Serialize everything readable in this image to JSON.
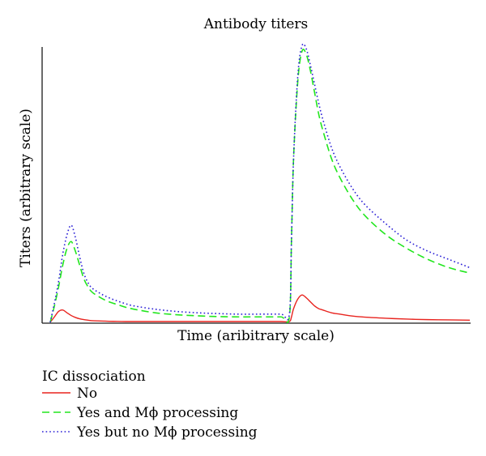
{
  "chart_data": {
    "type": "line",
    "title": "Antibody titers",
    "xlabel": "Time (aribitrary scale)",
    "ylabel": "Titers (arbitrary scale)",
    "xlim": [
      0,
      100
    ],
    "ylim": [
      0,
      100
    ],
    "grid": false,
    "legend_position": "bottom-left",
    "legend_title": "IC dissociation",
    "x": [
      0,
      1,
      2,
      3,
      4,
      5,
      6,
      7,
      8,
      9,
      10,
      12,
      14,
      16,
      18,
      20,
      25,
      30,
      35,
      40,
      45,
      50,
      55,
      57,
      57.5,
      58,
      59,
      60,
      61,
      62,
      63,
      64,
      65,
      67,
      69,
      72,
      75,
      80,
      85,
      90,
      95,
      100
    ],
    "series": [
      {
        "name": "No",
        "color": "#e8241f",
        "dash": "solid",
        "values": [
          0,
          2,
          4,
          4.5,
          3.5,
          2.5,
          1.8,
          1.3,
          1,
          0.8,
          0.6,
          0.5,
          0.4,
          0.35,
          0.3,
          0.3,
          0.3,
          0.3,
          0.3,
          0.3,
          0.3,
          0.3,
          0.3,
          0.3,
          2,
          5,
          8.5,
          10,
          9,
          7.5,
          6,
          5,
          4.5,
          3.5,
          3,
          2.3,
          1.9,
          1.5,
          1.2,
          1,
          0.9,
          0.8
        ]
      },
      {
        "name": "Yes and Mϕ processing",
        "color": "#22e61e",
        "dash": "dashed",
        "values": [
          0,
          6,
          13,
          21,
          27,
          29.5,
          26,
          21,
          16,
          13,
          11,
          9,
          7.5,
          6.5,
          5.5,
          4.8,
          3.5,
          2.8,
          2.4,
          2.1,
          2,
          2,
          2,
          2,
          30,
          60,
          88,
          99,
          98,
          92,
          84,
          76,
          70,
          60,
          53,
          45,
          39,
          32,
          27,
          23,
          20,
          18
        ]
      },
      {
        "name": "Yes but no Mϕ processing",
        "color": "#2a1fd6",
        "dash": "dotted",
        "values": [
          0,
          7,
          15,
          25,
          32,
          35.5,
          31,
          24,
          18,
          14.5,
          12.5,
          10.5,
          9,
          7.8,
          6.8,
          6,
          4.8,
          4,
          3.5,
          3.2,
          3,
          3,
          3,
          3,
          30,
          60,
          90,
          101,
          100,
          94,
          87,
          80,
          74,
          64,
          57,
          49,
          43,
          36,
          30,
          26,
          23,
          20
        ]
      }
    ]
  }
}
